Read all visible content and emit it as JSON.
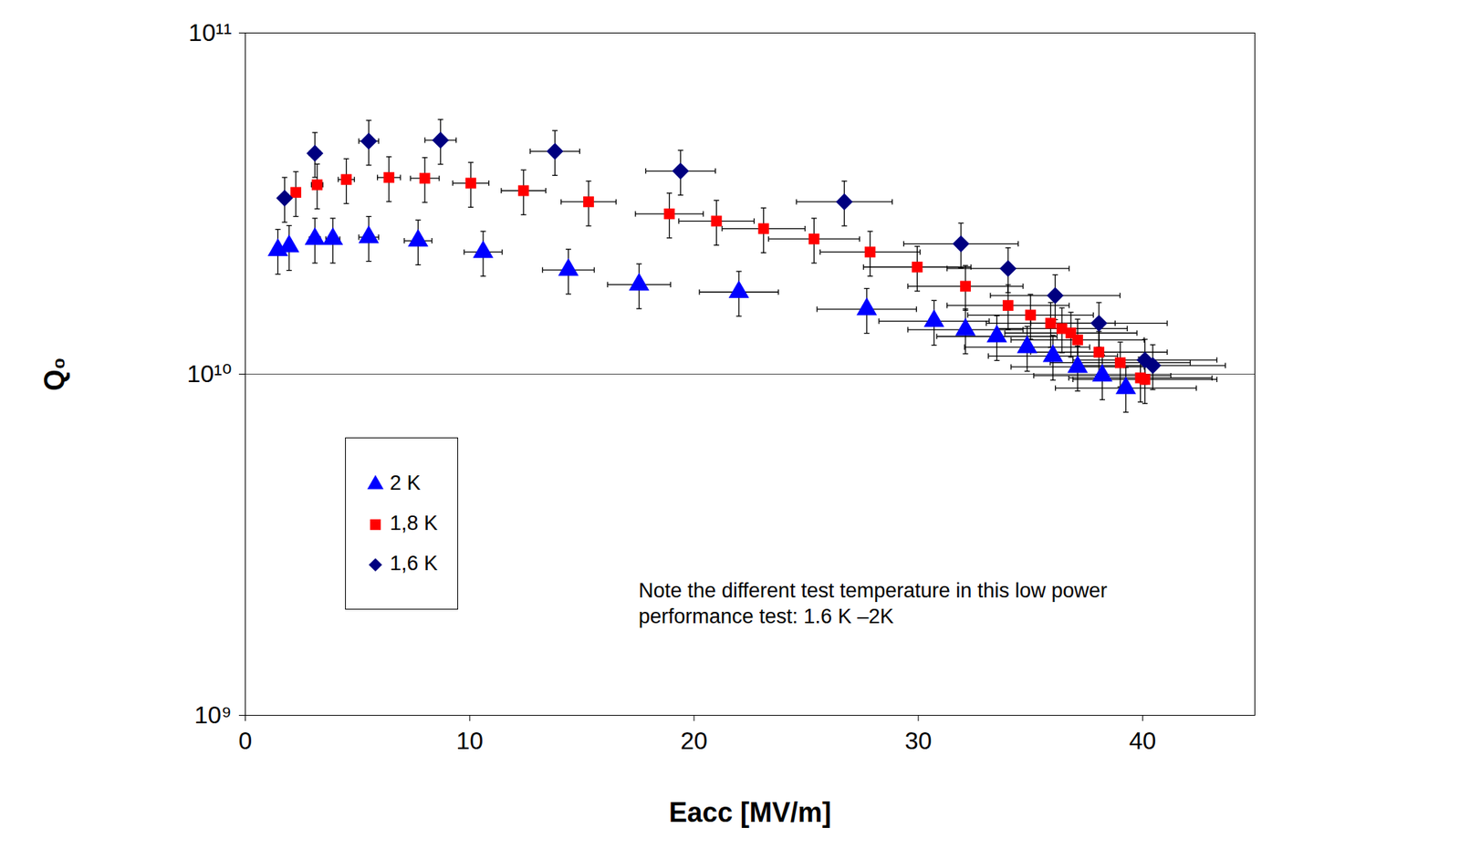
{
  "chart_data": {
    "type": "scatter",
    "x_label": "Eacc [MV/m]",
    "y_label": "Q₀",
    "annotation": "Note the different test temperature in this low power performance test: 1.6 K –2K",
    "xlim": [
      0,
      45
    ],
    "xticks": [
      0,
      10,
      20,
      30,
      40
    ],
    "ylim": [
      1000000000.0,
      100000000000.0
    ],
    "yticks": [
      {
        "value": 1000000000.0,
        "label": "10⁹"
      },
      {
        "value": 10000000000.0,
        "label": "10¹⁰"
      },
      {
        "value": 100000000000.0,
        "label": "10¹¹"
      }
    ],
    "log": "y",
    "grid": true,
    "legend": "lower left",
    "series": [
      {
        "name": "2 K",
        "color": "#0000ff",
        "marker": "triangle",
        "x": [
          1.45,
          1.95,
          3.1,
          3.9,
          5.5,
          7.7,
          10.6,
          14.4,
          17.55,
          22.0,
          27.7,
          30.7,
          32.1,
          33.5,
          34.85,
          36.0,
          37.1,
          38.2,
          39.25
        ],
        "values": [
          23100000000.0,
          23700000000.0,
          24900000000.0,
          24900000000.0,
          25200000000.0,
          24600000000.0,
          22800000000.0,
          20200000000.0,
          18300000000.0,
          17400000000.0,
          15500000000.0,
          14300000000.0,
          13500000000.0,
          12900000000.0,
          12000000000.0,
          11300000000.0,
          10500000000.0,
          9900000000.0,
          9100000000.0
        ],
        "x_error_relative": 0.08,
        "y_error_relative": 0.15
      },
      {
        "name": "1,8 K",
        "color": "#ff0000",
        "marker": "square",
        "x": [
          2.25,
          3.2,
          4.5,
          6.4,
          8.0,
          10.05,
          12.4,
          15.3,
          18.9,
          21.0,
          23.1,
          25.35,
          27.85,
          29.95,
          32.1,
          34.0,
          35.0,
          35.9,
          36.4,
          36.8,
          37.1,
          38.05,
          39.0,
          39.9,
          40.1
        ],
        "values": [
          34100000000.0,
          35900000000.0,
          37200000000.0,
          37700000000.0,
          37500000000.0,
          36300000000.0,
          34500000000.0,
          32000000000.0,
          29500000000.0,
          28100000000.0,
          26700000000.0,
          24900000000.0,
          22800000000.0,
          20600000000.0,
          18100000000.0,
          15900000000.0,
          14900000000.0,
          14100000000.0,
          13600000000.0,
          13200000000.0,
          12600000000.0,
          11600000000.0,
          10800000000.0,
          9750000000.0,
          9650000000.0
        ],
        "x_error_relative": 0.08,
        "y_error_relative": 0.15
      },
      {
        "name": "1,6 K",
        "color": "#000080",
        "marker": "diamond",
        "x": [
          1.75,
          3.1,
          5.5,
          8.7,
          13.8,
          19.4,
          26.7,
          31.9,
          34.0,
          36.1,
          38.05,
          40.1,
          40.45
        ],
        "values": [
          32800000000.0,
          44400000000.0,
          48200000000.0,
          48500000000.0,
          45000000000.0,
          39400000000.0,
          32000000000.0,
          24100000000.0,
          20400000000.0,
          17000000000.0,
          14100000000.0,
          11000000000.0,
          10600000000.0
        ],
        "x_error_relative": 0.08,
        "y_error_relative": 0.15
      }
    ]
  }
}
